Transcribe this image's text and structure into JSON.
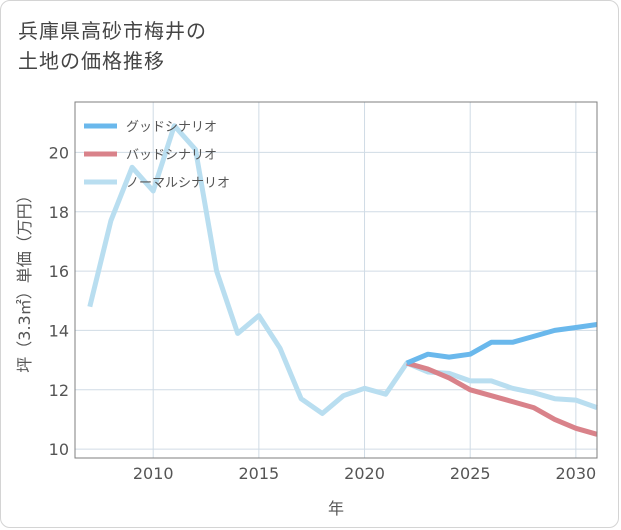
{
  "title_lines": [
    "兵庫県高砂市梅井の",
    "土地の価格推移"
  ],
  "chart_data": {
    "type": "line",
    "xlabel": "年",
    "ylabel": "坪（3.3㎡）単価（万円）",
    "xlim": [
      2006.3,
      2031
    ],
    "ylim": [
      9.7,
      21.7
    ],
    "xticks": [
      2010,
      2015,
      2020,
      2025,
      2030
    ],
    "yticks": [
      10,
      12,
      14,
      16,
      18,
      20
    ],
    "grid": true,
    "legend_position": "top-left",
    "series": [
      {
        "name": "グッドシナリオ",
        "color": "#6ab8ec",
        "x": [
          2022,
          2023,
          2024,
          2025,
          2026,
          2027,
          2028,
          2029,
          2030,
          2031
        ],
        "y": [
          12.9,
          13.2,
          13.1,
          13.2,
          13.6,
          13.6,
          13.8,
          14.0,
          14.1,
          14.2
        ]
      },
      {
        "name": "バッドシナリオ",
        "color": "#d9828a",
        "x": [
          2022,
          2023,
          2024,
          2025,
          2026,
          2027,
          2028,
          2029,
          2030,
          2031
        ],
        "y": [
          12.9,
          12.7,
          12.4,
          12.0,
          11.8,
          11.6,
          11.4,
          11.0,
          10.7,
          10.5
        ]
      },
      {
        "name": "ノーマルシナリオ",
        "color": "#b9def0",
        "x": [
          2007,
          2008,
          2009,
          2010,
          2011,
          2012,
          2013,
          2014,
          2015,
          2016,
          2017,
          2018,
          2019,
          2020,
          2021,
          2022,
          2023,
          2024,
          2025,
          2026,
          2027,
          2028,
          2029,
          2030,
          2031
        ],
        "y": [
          14.8,
          17.7,
          19.5,
          18.7,
          20.9,
          20.1,
          16.0,
          13.9,
          14.5,
          13.4,
          11.7,
          11.2,
          11.8,
          12.05,
          11.85,
          12.9,
          12.6,
          12.55,
          12.3,
          12.3,
          12.05,
          11.9,
          11.7,
          11.65,
          11.4
        ]
      }
    ]
  }
}
